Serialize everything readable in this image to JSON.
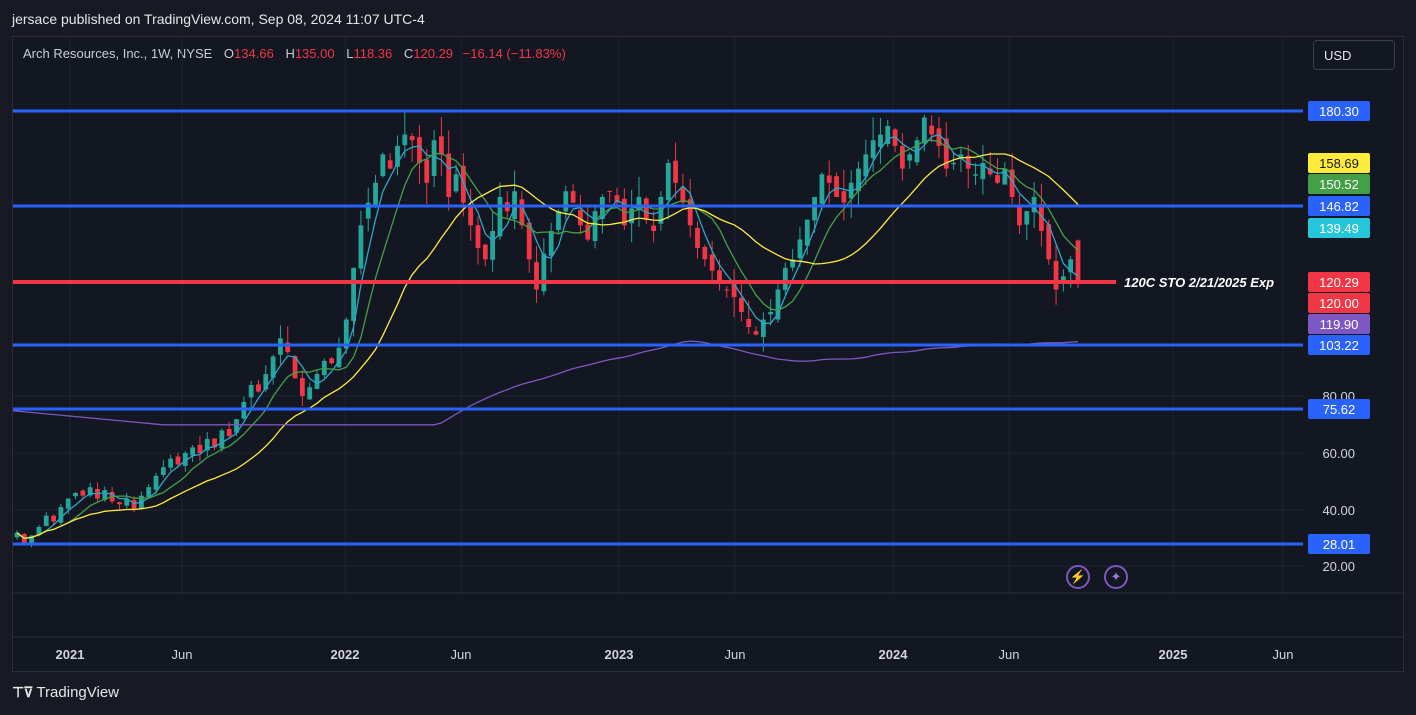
{
  "header": {
    "published": "jersace published on TradingView.com, Sep 08, 2024 11:07 UTC-4"
  },
  "legend": {
    "symbol": "Arch Resources, Inc., 1W, NYSE",
    "o_label": "O",
    "o": "134.66",
    "h_label": "H",
    "h": "135.00",
    "l_label": "L",
    "l": "118.36",
    "c_label": "C",
    "c": "120.29",
    "change": "−16.14 (−11.83%)"
  },
  "currency": "USD",
  "footer": {
    "brand": "TradingView"
  },
  "colors": {
    "up": "#26a69a",
    "down": "#f23645",
    "level": "#2962ff",
    "ma20": "#2aa7c9",
    "ma50": "#43a047",
    "ma100": "#ffeb3b",
    "ma200": "#7e57c2"
  },
  "icons": [
    "lightning-icon",
    "sparkle-icon"
  ],
  "chart_data": {
    "type": "candlestick",
    "timeframe": "1W",
    "x_ticks": [
      "2021",
      "Jun",
      "2022",
      "Jun",
      "2023",
      "Jun",
      "2024",
      "Jun",
      "2025",
      "Jun"
    ],
    "y_ticks": [
      20,
      40,
      60,
      80
    ],
    "y_range": [
      13,
      204
    ],
    "horizontal_levels": [
      {
        "value": 180.3,
        "label": "180.30",
        "color": "#2962ff"
      },
      {
        "value": 146.82,
        "label": "146.82",
        "color": "#2962ff"
      },
      {
        "value": 120.0,
        "label": "120.00",
        "color": "#f23645",
        "annotation": "120C STO 2/21/2025 Exp"
      },
      {
        "value": 103.22,
        "label": "103.22",
        "color": "#2962ff"
      },
      {
        "value": 75.62,
        "label": "75.62",
        "color": "#2962ff"
      },
      {
        "value": 28.01,
        "label": "28.01",
        "color": "#2962ff"
      }
    ],
    "price_labels": [
      {
        "value": 158.69,
        "label": "158.69",
        "color": "#ffeb3b"
      },
      {
        "value": 150.52,
        "label": "150.52",
        "color": "#43a047"
      },
      {
        "value": 139.49,
        "label": "139.49",
        "color": "#26c6da"
      },
      {
        "value": 120.29,
        "label": "120.29",
        "color": "#f23645"
      },
      {
        "value": 119.9,
        "label": "119.90",
        "color": "#7e57c2"
      }
    ],
    "closes": [
      32,
      28,
      31,
      34,
      38,
      36,
      41,
      44,
      46,
      45,
      48,
      44,
      47,
      43,
      42,
      44,
      40,
      45,
      48,
      52,
      55,
      58,
      56,
      60,
      62,
      60,
      65,
      62,
      68,
      66,
      72,
      78,
      85,
      82,
      90,
      98,
      105,
      100,
      88,
      80,
      84,
      90,
      96,
      95,
      102,
      110,
      125,
      140,
      148,
      155,
      165,
      160,
      168,
      172,
      170,
      162,
      155,
      170,
      165,
      150,
      158,
      148,
      140,
      132,
      128,
      138,
      150,
      145,
      152,
      140,
      128,
      118,
      130,
      138,
      145,
      152,
      148,
      140,
      135,
      145,
      150,
      152,
      148,
      140,
      146,
      150,
      142,
      138,
      150,
      162,
      155,
      148,
      140,
      132,
      128,
      124,
      120,
      118,
      116,
      112,
      108,
      106,
      110,
      112,
      118,
      125,
      128,
      135,
      142,
      150,
      158,
      155,
      150,
      148,
      155,
      160,
      165,
      170,
      172,
      175,
      168,
      160,
      165,
      170,
      178,
      172,
      168,
      160,
      162,
      165,
      160,
      158,
      162,
      158,
      155,
      160,
      150,
      140,
      145,
      150,
      138,
      128,
      118,
      122,
      128,
      120
    ]
  }
}
